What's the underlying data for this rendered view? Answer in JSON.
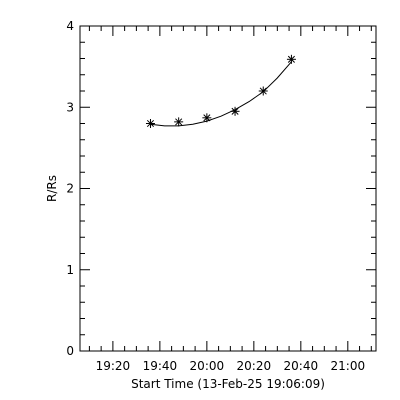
{
  "chart_data": {
    "type": "scatter",
    "xlabel": "Start Time (13-Feb-25 19:06:09)",
    "ylabel": "R/Rs",
    "xlim": [
      "19:06",
      "21:12"
    ],
    "ylim": [
      0,
      4
    ],
    "x_ticks": [
      "19:20",
      "19:40",
      "20:00",
      "20:20",
      "20:40",
      "21:00"
    ],
    "y_ticks": [
      "0",
      "1",
      "2",
      "3",
      "4"
    ],
    "grid": false,
    "marker": "asterisk",
    "series": [
      {
        "points": [
          {
            "x": "19:36",
            "y": 2.8
          },
          {
            "x": "19:48",
            "y": 2.82
          },
          {
            "x": "20:00",
            "y": 2.87
          },
          {
            "x": "20:12",
            "y": 2.95
          },
          {
            "x": "20:24",
            "y": 3.2
          },
          {
            "x": "20:36",
            "y": 3.59
          }
        ]
      }
    ],
    "fit": [
      {
        "x": "19:36",
        "y": 2.79
      },
      {
        "x": "19:42",
        "y": 2.77
      },
      {
        "x": "19:48",
        "y": 2.77
      },
      {
        "x": "19:54",
        "y": 2.79
      },
      {
        "x": "20:00",
        "y": 2.83
      },
      {
        "x": "20:06",
        "y": 2.89
      },
      {
        "x": "20:12",
        "y": 2.97
      },
      {
        "x": "20:18",
        "y": 3.07
      },
      {
        "x": "20:24",
        "y": 3.19
      },
      {
        "x": "20:30",
        "y": 3.36
      },
      {
        "x": "20:36",
        "y": 3.56
      }
    ],
    "colors": {
      "background": "#ffffff",
      "foreground": "#000000"
    }
  }
}
